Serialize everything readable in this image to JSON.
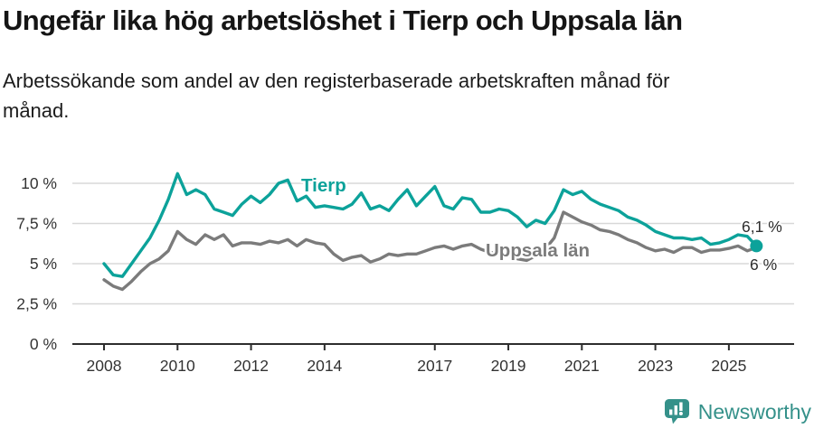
{
  "title": "Ungefär lika hög arbetslöshet i Tierp och Uppsala län",
  "subtitle_lines": [
    "Arbetssökande som andel av den registerbaserade arbetskraften månad för",
    "månad."
  ],
  "chart_data": {
    "type": "line",
    "unit": "%",
    "grid": "horizontal",
    "legend": "inline-labels",
    "x_start": 2008.0,
    "x_step": 0.25,
    "xlim": [
      2008,
      2025.83
    ],
    "ylim": [
      0,
      11.2
    ],
    "x_tick_years": [
      2008,
      2010,
      2012,
      2014,
      2017,
      2019,
      2021,
      2023,
      2025
    ],
    "y_ticks": [
      {
        "value": 0,
        "label": "0 %"
      },
      {
        "value": 2.5,
        "label": "2,5 %"
      },
      {
        "value": 5,
        "label": "5 %"
      },
      {
        "value": 7.5,
        "label": "7,5 %"
      },
      {
        "value": 10,
        "label": "10 %"
      }
    ],
    "axis_color": "#2d2d2d",
    "grid_color": "#d8d8d8",
    "series": [
      {
        "name": "Tierp",
        "color": "#0ca29a",
        "end_label": "6,1 %",
        "end_value": 6.1,
        "end_dot": true,
        "values": [
          5.0,
          4.3,
          4.2,
          5.0,
          5.8,
          6.6,
          7.7,
          9.0,
          10.6,
          9.3,
          9.6,
          9.3,
          8.4,
          8.2,
          8.0,
          8.7,
          9.2,
          8.8,
          9.3,
          10.0,
          10.2,
          8.9,
          9.2,
          8.5,
          8.6,
          8.5,
          8.4,
          8.7,
          9.4,
          8.4,
          8.6,
          8.3,
          9.0,
          9.6,
          8.6,
          9.2,
          9.8,
          8.6,
          8.4,
          9.1,
          9.0,
          8.2,
          8.2,
          8.4,
          8.3,
          7.9,
          7.3,
          7.7,
          7.5,
          8.3,
          9.6,
          9.3,
          9.5,
          9.0,
          8.7,
          8.5,
          8.3,
          7.9,
          7.7,
          7.4,
          7.0,
          6.8,
          6.6,
          6.6,
          6.5,
          6.6,
          6.2,
          6.3,
          6.5,
          6.8,
          6.7,
          6.1
        ]
      },
      {
        "name": "Uppsala län",
        "color": "#7b7b7b",
        "end_label": "6 %",
        "end_value": 6.0,
        "end_dot": false,
        "values": [
          4.0,
          3.6,
          3.4,
          3.9,
          4.5,
          5.0,
          5.3,
          5.8,
          7.0,
          6.5,
          6.2,
          6.8,
          6.5,
          6.8,
          6.1,
          6.3,
          6.3,
          6.2,
          6.4,
          6.3,
          6.5,
          6.1,
          6.5,
          6.3,
          6.2,
          5.6,
          5.2,
          5.4,
          5.5,
          5.1,
          5.3,
          5.6,
          5.5,
          5.6,
          5.6,
          5.8,
          6.0,
          6.1,
          5.9,
          6.1,
          6.2,
          5.9,
          5.7,
          5.6,
          5.5,
          5.3,
          5.2,
          5.5,
          5.9,
          6.6,
          8.2,
          7.9,
          7.6,
          7.4,
          7.1,
          7.0,
          6.8,
          6.5,
          6.3,
          6.0,
          5.8,
          5.9,
          5.7,
          6.0,
          6.0,
          5.7,
          5.85,
          5.85,
          5.95,
          6.1,
          5.8,
          6.0
        ]
      }
    ]
  },
  "branding": {
    "logo_text": "Newsworthy",
    "color": "#35918a"
  }
}
